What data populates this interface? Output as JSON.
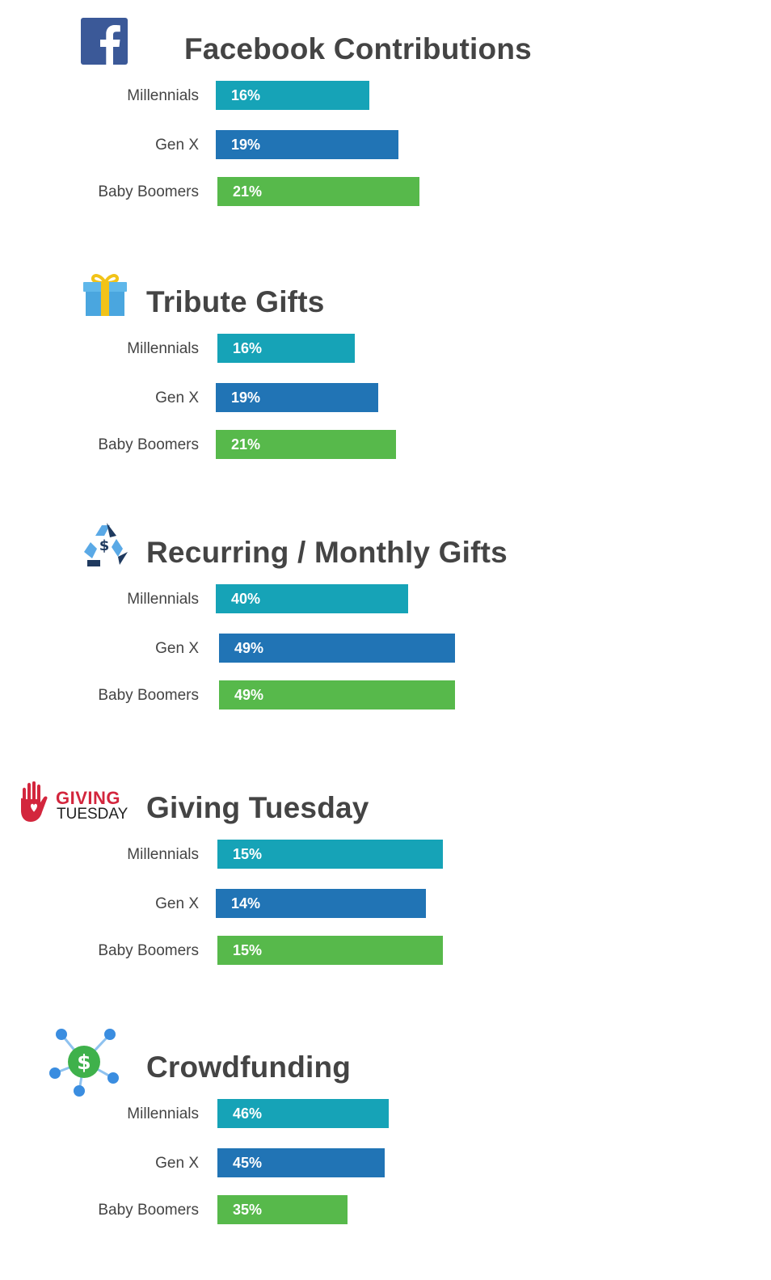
{
  "colors": {
    "millennials": "#16a3b7",
    "genx": "#2174b5",
    "baby_boomers": "#57b94b",
    "title": "#444444",
    "label": "#444444",
    "facebook_blue": "#3b5998",
    "giving_red": "#d3263d"
  },
  "logos": {
    "giving_tuesday_line1": "GIVING",
    "giving_tuesday_line2": "TUESDAY"
  },
  "chart_data": [
    {
      "type": "bar",
      "orientation": "horizontal",
      "title": "Facebook Contributions",
      "icon": "facebook-icon",
      "categories": [
        "Millennials",
        "Gen X",
        "Baby Boomers"
      ],
      "values": [
        16,
        19,
        21
      ],
      "value_labels": [
        "16%",
        "19%",
        "21%"
      ],
      "unit": "%",
      "grid": false,
      "legend": "none"
    },
    {
      "type": "bar",
      "orientation": "horizontal",
      "title": "Tribute Gifts",
      "icon": "gift-icon",
      "categories": [
        "Millennials",
        "Gen X",
        "Baby Boomers"
      ],
      "values": [
        16,
        19,
        21
      ],
      "value_labels": [
        "16%",
        "19%",
        "21%"
      ],
      "unit": "%",
      "grid": false,
      "legend": "none"
    },
    {
      "type": "bar",
      "orientation": "horizontal",
      "title": "Recurring / Monthly Gifts",
      "icon": "recycle-dollar-icon",
      "categories": [
        "Millennials",
        "Gen X",
        "Baby Boomers"
      ],
      "values": [
        40,
        49,
        49
      ],
      "value_labels": [
        "40%",
        "49%",
        "49%"
      ],
      "unit": "%",
      "grid": false,
      "legend": "none"
    },
    {
      "type": "bar",
      "orientation": "horizontal",
      "title": "Giving Tuesday",
      "icon": "giving-tuesday-logo-icon",
      "categories": [
        "Millennials",
        "Gen X",
        "Baby Boomers"
      ],
      "values": [
        15,
        14,
        15
      ],
      "value_labels": [
        "15%",
        "14%",
        "15%"
      ],
      "unit": "%",
      "grid": false,
      "legend": "none"
    },
    {
      "type": "bar",
      "orientation": "horizontal",
      "title": "Crowdfunding",
      "icon": "crowdfunding-network-icon",
      "categories": [
        "Millennials",
        "Gen X",
        "Baby Boomers"
      ],
      "values": [
        46,
        45,
        35
      ],
      "value_labels": [
        "46%",
        "45%",
        "35%"
      ],
      "unit": "%",
      "grid": false,
      "legend": "none"
    }
  ]
}
